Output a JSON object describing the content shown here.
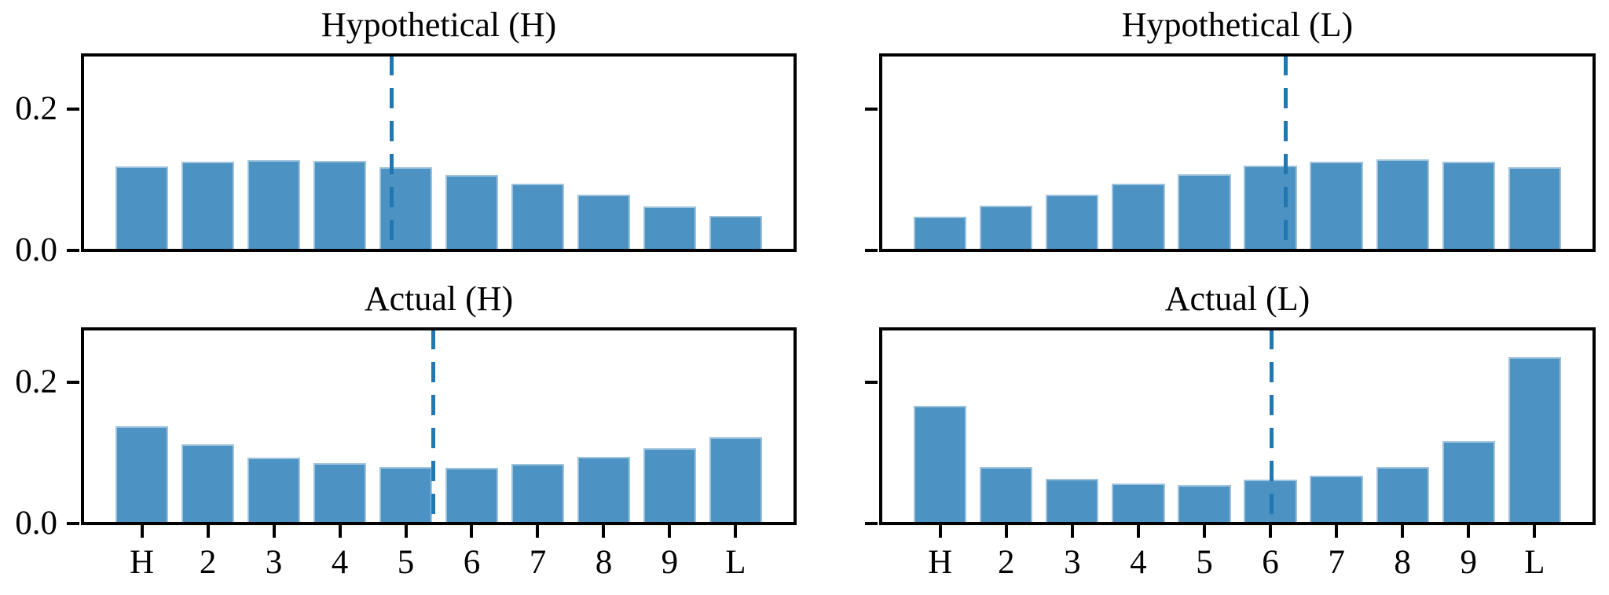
{
  "colors": {
    "bar_fill": "#4c92c3",
    "bar_edge": "#9fc3dd",
    "vline": "#1f77b4",
    "spine": "#000000",
    "text": "#000000",
    "background": "#ffffff"
  },
  "chart_data": [
    {
      "type": "bar",
      "title": "Hypothetical (H)",
      "categories": [
        "H",
        "2",
        "3",
        "4",
        "5",
        "6",
        "7",
        "8",
        "9",
        "L"
      ],
      "values": [
        0.119,
        0.125,
        0.127,
        0.126,
        0.117,
        0.106,
        0.094,
        0.079,
        0.062,
        0.049
      ],
      "vline_x": 4.79,
      "vline_style": "dashed",
      "xlim": [
        -0.9,
        9.9
      ],
      "ylim": [
        0,
        0.276
      ],
      "yticks": [
        0,
        0.2
      ],
      "ytick_labels": [
        "0.0",
        "0.2"
      ],
      "show_ytick_labels": true,
      "show_xtick_labels": false,
      "bar_width": 0.8,
      "grid": false
    },
    {
      "type": "bar",
      "title": "Hypothetical (L)",
      "categories": [
        "H",
        "2",
        "3",
        "4",
        "5",
        "6",
        "7",
        "8",
        "9",
        "L"
      ],
      "values": [
        0.048,
        0.063,
        0.079,
        0.094,
        0.107,
        0.12,
        0.125,
        0.129,
        0.125,
        0.118
      ],
      "vline_x": 6.23,
      "vline_style": "dashed",
      "xlim": [
        -0.9,
        9.9
      ],
      "ylim": [
        0,
        0.276
      ],
      "yticks": [
        0,
        0.2
      ],
      "ytick_labels": [
        "0.0",
        "0.2"
      ],
      "show_ytick_labels": false,
      "show_xtick_labels": false,
      "bar_width": 0.8,
      "grid": false
    },
    {
      "type": "bar",
      "title": "Actual (H)",
      "categories": [
        "H",
        "2",
        "3",
        "4",
        "5",
        "6",
        "7",
        "8",
        "9",
        "L"
      ],
      "values": [
        0.138,
        0.112,
        0.094,
        0.086,
        0.08,
        0.079,
        0.085,
        0.095,
        0.107,
        0.122
      ],
      "vline_x": 5.42,
      "vline_style": "dashed",
      "xlim": [
        -0.9,
        9.9
      ],
      "ylim": [
        0,
        0.276
      ],
      "yticks": [
        0,
        0.2
      ],
      "ytick_labels": [
        "0.0",
        "0.2"
      ],
      "show_ytick_labels": true,
      "show_xtick_labels": true,
      "bar_width": 0.8,
      "grid": false
    },
    {
      "type": "bar",
      "title": "Actual (L)",
      "categories": [
        "H",
        "2",
        "3",
        "4",
        "5",
        "6",
        "7",
        "8",
        "9",
        "L"
      ],
      "values": [
        0.167,
        0.08,
        0.063,
        0.057,
        0.055,
        0.062,
        0.068,
        0.08,
        0.117,
        0.236
      ],
      "vline_x": 6.02,
      "vline_style": "dashed",
      "xlim": [
        -0.9,
        9.9
      ],
      "ylim": [
        0,
        0.276
      ],
      "yticks": [
        0,
        0.2
      ],
      "ytick_labels": [
        "0.0",
        "0.2"
      ],
      "show_ytick_labels": false,
      "show_xtick_labels": true,
      "bar_width": 0.8,
      "grid": false
    }
  ]
}
